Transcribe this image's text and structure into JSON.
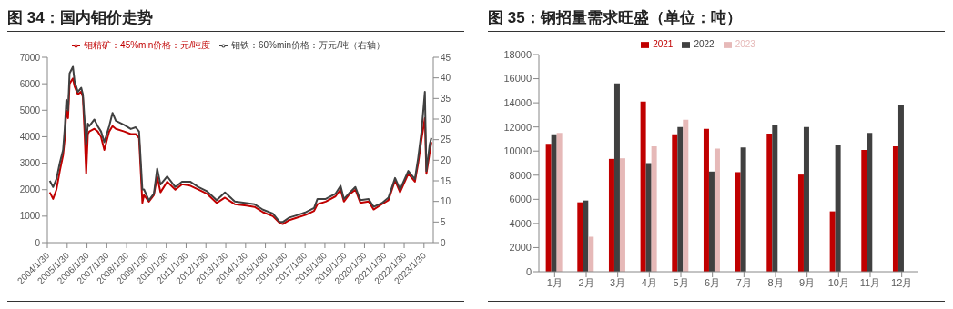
{
  "chart_data": [
    {
      "type": "line",
      "title": "图 34：国内钼价走势",
      "legend": "top",
      "grid": false,
      "x": [
        "2004-03-15",
        "2004-05-15",
        "2004-07-15",
        "2004-09-15",
        "2004-11-15",
        "2004-12-15",
        "2005-01-15",
        "2005-02-15",
        "2005-03-15",
        "2005-05-15",
        "2005-06-15",
        "2005-08-15",
        "2005-10-15",
        "2005-11-15",
        "2005-12-15",
        "2006-01-15",
        "2006-02-15",
        "2006-03-15",
        "2006-06-15",
        "2006-08-15",
        "2006-10-15",
        "2006-12-15",
        "2007-03-15",
        "2007-05-15",
        "2007-07-15",
        "2007-12-15",
        "2008-04-15",
        "2008-07-15",
        "2008-09-15",
        "2008-11-15",
        "2008-12-15",
        "2009-03-15",
        "2009-06-15",
        "2009-08-15",
        "2009-10-15",
        "2010-02-15",
        "2010-07-15",
        "2010-11-15",
        "2011-04-15",
        "2011-09-15",
        "2012-02-15",
        "2012-08-15",
        "2013-01-15",
        "2013-07-15",
        "2014-02-15",
        "2014-07-15",
        "2014-12-15",
        "2015-06-15",
        "2015-10-15",
        "2015-12-15",
        "2016-04-15",
        "2016-09-15",
        "2017-02-15",
        "2017-07-15",
        "2017-09-15",
        "2018-02-15",
        "2018-08-15",
        "2018-11-15",
        "2019-01-15",
        "2019-04-15",
        "2019-08-15",
        "2019-11-15",
        "2020-04-15",
        "2020-07-15",
        "2020-12-15",
        "2021-04-15",
        "2021-08-15",
        "2021-11-15",
        "2022-04-15",
        "2022-08-15",
        "2022-10-15",
        "2022-12-15",
        "2023-02-15",
        "2023-03-15",
        "2023-05-15",
        "2023-06-15"
      ],
      "series": [
        {
          "name": "钼精矿：45%min价格：元/吨度",
          "color": "#c00000",
          "values": [
            1900,
            1650,
            2000,
            2700,
            3300,
            3900,
            5000,
            4700,
            6000,
            6200,
            5900,
            5600,
            5700,
            5500,
            4200,
            2600,
            4100,
            4200,
            4300,
            4200,
            4000,
            3500,
            4200,
            4400,
            4300,
            4200,
            4100,
            4100,
            3950,
            1500,
            1800,
            1550,
            1800,
            2500,
            1900,
            2300,
            2000,
            2200,
            2150,
            2000,
            1850,
            1500,
            1700,
            1450,
            1400,
            1350,
            1150,
            1000,
            750,
            700,
            850,
            950,
            1050,
            1200,
            1450,
            1550,
            1750,
            2000,
            1550,
            1800,
            2000,
            1500,
            1550,
            1250,
            1450,
            1600,
            2350,
            1900,
            2600,
            2300,
            3000,
            3900,
            4700,
            2600,
            3400,
            3800
          ]
        },
        {
          "name": "钼铁：60%min价格：万元/吨（右轴）",
          "color": "#404040",
          "axis": "y2",
          "values": [
            15,
            13.5,
            15.4,
            19.3,
            22.5,
            27.6,
            34.7,
            32.1,
            41.1,
            42.7,
            39.2,
            36.6,
            37.6,
            36,
            30.2,
            23.8,
            28.9,
            28.3,
            29.9,
            28.3,
            27,
            24.4,
            28.3,
            31.5,
            29.6,
            28.6,
            27.6,
            28,
            27,
            12.9,
            12.9,
            10.3,
            11.9,
            18,
            14.1,
            16.1,
            13.5,
            14.8,
            14.8,
            13.5,
            12.5,
            10.3,
            12.2,
            10,
            9.6,
            9.3,
            8,
            7.1,
            5.1,
            5,
            6.1,
            6.7,
            7.4,
            8.4,
            10.6,
            10.6,
            11.9,
            13.8,
            10.6,
            11.9,
            13.5,
            10.3,
            10.6,
            8.7,
            9.6,
            10.9,
            15.7,
            12.9,
            17.4,
            15.4,
            20.6,
            27,
            36.6,
            17.4,
            23.8,
            25.4
          ]
        }
      ],
      "xlim": [
        "2004-01-30",
        "2023-07-20"
      ],
      "xticks": [
        {
          "value": "2004-01-30",
          "label": "2004/1/30"
        },
        {
          "value": "2005-01-30",
          "label": "2005/1/30"
        },
        {
          "value": "2006-01-30",
          "label": "2006/1/30"
        },
        {
          "value": "2007-01-30",
          "label": "2007/1/30"
        },
        {
          "value": "2008-01-30",
          "label": "2008/1/30"
        },
        {
          "value": "2009-01-30",
          "label": "2009/1/30"
        },
        {
          "value": "2010-01-30",
          "label": "2010/1/30"
        },
        {
          "value": "2011-01-30",
          "label": "2011/1/30"
        },
        {
          "value": "2012-01-30",
          "label": "2012/1/30"
        },
        {
          "value": "2013-01-30",
          "label": "2013/1/30"
        },
        {
          "value": "2014-01-30",
          "label": "2014/1/30"
        },
        {
          "value": "2015-01-30",
          "label": "2015/1/30"
        },
        {
          "value": "2016-01-30",
          "label": "2016/1/30"
        },
        {
          "value": "2017-01-30",
          "label": "2017/1/30"
        },
        {
          "value": "2018-01-30",
          "label": "2018/1/30"
        },
        {
          "value": "2019-01-30",
          "label": "2019/1/30"
        },
        {
          "value": "2020-01-30",
          "label": "2020/1/30"
        },
        {
          "value": "2021-01-30",
          "label": "2021/1/30"
        },
        {
          "value": "2022-01-30",
          "label": "2022/1/30"
        },
        {
          "value": "2023-01-30",
          "label": "2023/1/30"
        }
      ],
      "ylim": [
        0,
        7000
      ],
      "yticks": [
        0,
        1000,
        2000,
        3000,
        4000,
        5000,
        6000,
        7000
      ],
      "y2lim": [
        0,
        45
      ],
      "y2ticks": [
        0,
        5,
        10,
        15,
        20,
        25,
        30,
        35,
        40,
        45
      ]
    },
    {
      "type": "bar",
      "title": "图 35：钢招量需求旺盛（单位：吨）",
      "legend": "top",
      "grid": false,
      "categories": [
        "1月",
        "2月",
        "3月",
        "4月",
        "5月",
        "6月",
        "7月",
        "8月",
        "9月",
        "10月",
        "11月",
        "12月"
      ],
      "series": [
        {
          "name": "2021",
          "color": "#c00000",
          "values": [
            10600,
            5750,
            9350,
            14100,
            11400,
            11850,
            8250,
            11450,
            8050,
            5000,
            10100,
            10400
          ]
        },
        {
          "name": "2022",
          "color": "#404040",
          "values": [
            11400,
            5900,
            15600,
            9000,
            12000,
            8300,
            10300,
            12200,
            12000,
            10500,
            11500,
            13800
          ]
        },
        {
          "name": "2023",
          "color": "#e6b9b8",
          "values": [
            11500,
            2900,
            9400,
            10400,
            12600,
            10200,
            null,
            null,
            null,
            null,
            null,
            null
          ]
        }
      ],
      "ylim": [
        0,
        18000
      ],
      "yticks": [
        0,
        2000,
        4000,
        6000,
        8000,
        10000,
        12000,
        14000,
        16000,
        18000
      ]
    }
  ]
}
